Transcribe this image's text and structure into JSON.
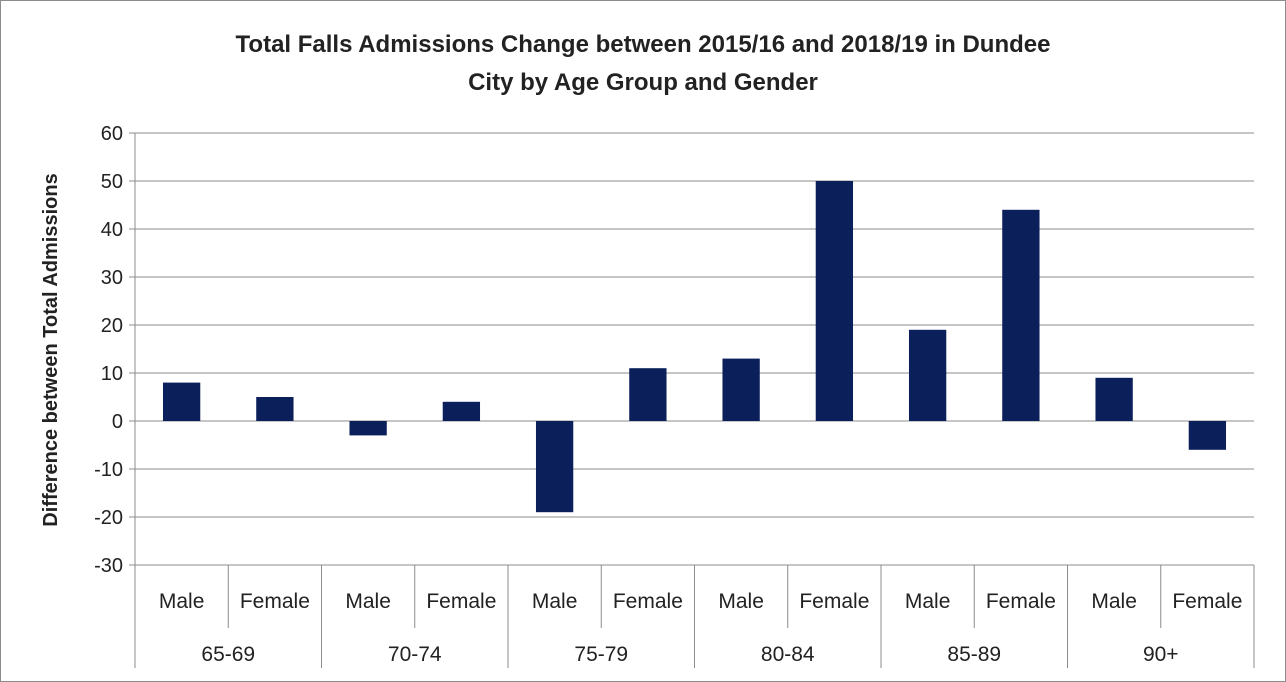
{
  "chart_data": {
    "type": "bar",
    "title_lines": [
      "Total Falls Admissions Change between 2015/16 and 2018/19 in Dundee",
      "City by Age Group and Gender"
    ],
    "ylabel": "Difference between Total Admissions",
    "xlabel": "",
    "ylim": [
      -30,
      60
    ],
    "yticks": [
      "60",
      "50",
      "40",
      "30",
      "20",
      "10",
      "0",
      "-10",
      "-20",
      "-30"
    ],
    "ytick_values": [
      60,
      50,
      40,
      30,
      20,
      10,
      0,
      -10,
      -20,
      -30
    ],
    "grid": true,
    "legend": "none",
    "bar_color": "#0b1f5b",
    "age_groups": [
      "65-69",
      "70-74",
      "75-79",
      "80-84",
      "85-89",
      "90+"
    ],
    "categories": [
      "Male",
      "Female",
      "Male",
      "Female",
      "Male",
      "Female",
      "Male",
      "Female",
      "Male",
      "Female",
      "Male",
      "Female"
    ],
    "values": [
      8,
      5,
      -3,
      4,
      -19,
      11,
      13,
      50,
      19,
      44,
      9,
      -6
    ]
  }
}
